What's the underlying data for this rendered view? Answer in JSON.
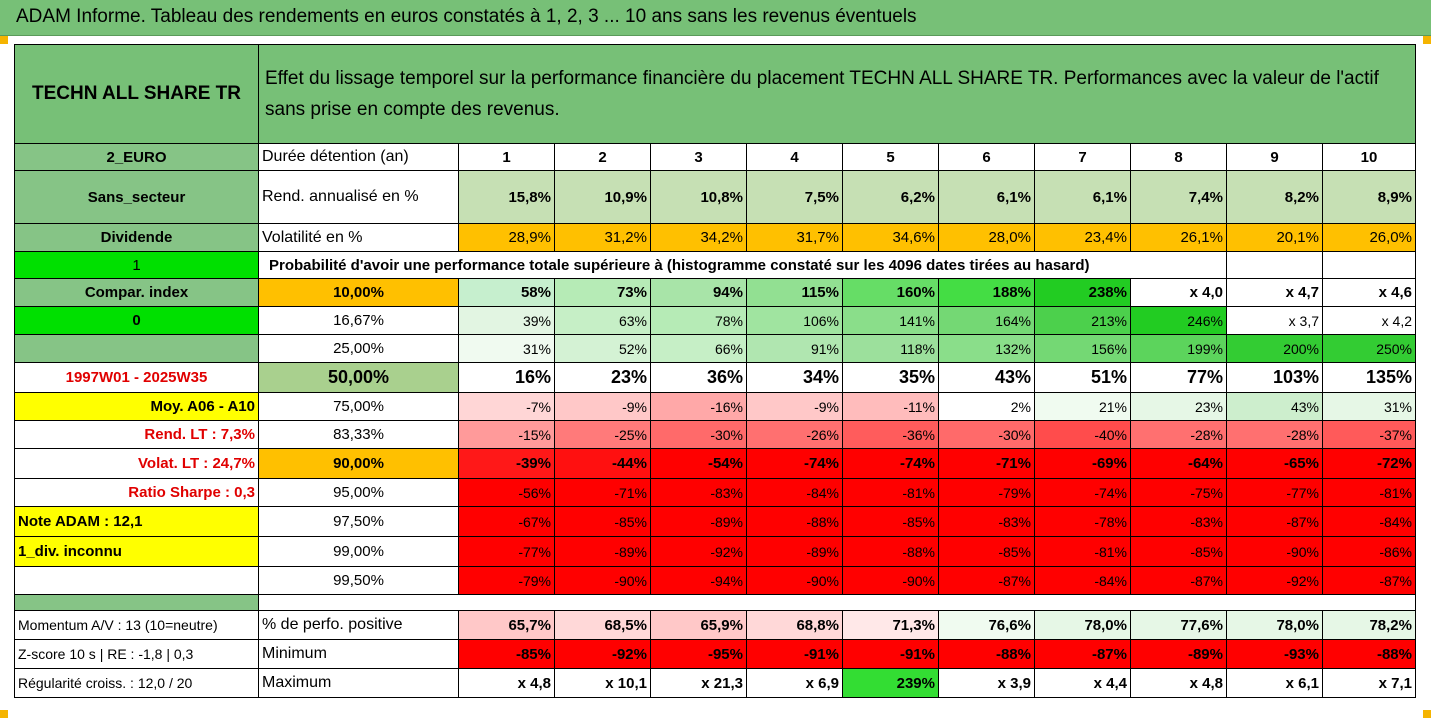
{
  "banner": {
    "title": "ADAM Informe. Tableau des rendements en euros constatés à 1, 2, 3 ... 10 ans sans les revenus éventuels"
  },
  "header": {
    "fund_name": "TECHN ALL SHARE TR",
    "description": "Effet du lissage temporel sur la performance financière du placement TECHN ALL SHARE TR. Performances avec la valeur de l'actif sans prise en compte des revenus."
  },
  "rows": {
    "duration": {
      "side": "2_EURO",
      "label": "Durée détention (an)",
      "values": [
        "1",
        "2",
        "3",
        "4",
        "5",
        "6",
        "7",
        "8",
        "9",
        "10"
      ]
    },
    "return": {
      "side": "Sans_secteur",
      "label": "Rend. annualisé en %",
      "values": [
        "15,8%",
        "10,9%",
        "10,8%",
        "7,5%",
        "6,2%",
        "6,1%",
        "6,1%",
        "7,4%",
        "8,2%",
        "8,9%"
      ]
    },
    "volatility": {
      "side": "Dividende",
      "label": "Volatilité en %",
      "values": [
        "28,9%",
        "31,2%",
        "34,2%",
        "31,7%",
        "34,6%",
        "28,0%",
        "23,4%",
        "26,1%",
        "20,1%",
        "26,0%"
      ]
    },
    "probability": {
      "side": "1",
      "text": "Probabilité d'avoir une performance totale supérieure à (histogramme constaté sur les 4096 dates tirées au hasard)"
    }
  },
  "percentile_sides": [
    "Compar. index",
    "0",
    "",
    "1997W01 - 2025W35",
    "Moy. A06 - A10",
    "Rend. LT :   7,3%",
    "Volat. LT :   24,7%",
    "Ratio Sharpe :    0,3",
    "Note ADAM : 12,1",
    "1_div. inconnu",
    ""
  ],
  "percentiles": [
    {
      "level": "10,00%",
      "values": [
        "58%",
        "73%",
        "94%",
        "115%",
        "160%",
        "188%",
        "238%",
        "x 4,0",
        "x 4,7",
        "x 4,6"
      ]
    },
    {
      "level": "16,67%",
      "values": [
        "39%",
        "63%",
        "78%",
        "106%",
        "141%",
        "164%",
        "213%",
        "246%",
        "x 3,7",
        "x 4,2"
      ]
    },
    {
      "level": "25,00%",
      "values": [
        "31%",
        "52%",
        "66%",
        "91%",
        "118%",
        "132%",
        "156%",
        "199%",
        "200%",
        "250%"
      ]
    },
    {
      "level": "50,00%",
      "values": [
        "16%",
        "23%",
        "36%",
        "34%",
        "35%",
        "43%",
        "51%",
        "77%",
        "103%",
        "135%"
      ]
    },
    {
      "level": "75,00%",
      "values": [
        "-7%",
        "-9%",
        "-16%",
        "-9%",
        "-11%",
        "2%",
        "21%",
        "23%",
        "43%",
        "31%"
      ]
    },
    {
      "level": "83,33%",
      "values": [
        "-15%",
        "-25%",
        "-30%",
        "-26%",
        "-36%",
        "-30%",
        "-40%",
        "-28%",
        "-28%",
        "-37%"
      ]
    },
    {
      "level": "90,00%",
      "values": [
        "-39%",
        "-44%",
        "-54%",
        "-74%",
        "-74%",
        "-71%",
        "-69%",
        "-64%",
        "-65%",
        "-72%"
      ]
    },
    {
      "level": "95,00%",
      "values": [
        "-56%",
        "-71%",
        "-83%",
        "-84%",
        "-81%",
        "-79%",
        "-74%",
        "-75%",
        "-77%",
        "-81%"
      ]
    },
    {
      "level": "97,50%",
      "values": [
        "-67%",
        "-85%",
        "-89%",
        "-88%",
        "-85%",
        "-83%",
        "-78%",
        "-83%",
        "-87%",
        "-84%"
      ]
    },
    {
      "level": "99,00%",
      "values": [
        "-77%",
        "-89%",
        "-92%",
        "-89%",
        "-88%",
        "-85%",
        "-81%",
        "-85%",
        "-90%",
        "-86%"
      ]
    },
    {
      "level": "99,50%",
      "values": [
        "-79%",
        "-90%",
        "-94%",
        "-90%",
        "-90%",
        "-87%",
        "-84%",
        "-87%",
        "-92%",
        "-87%"
      ]
    }
  ],
  "bottom": [
    {
      "side": "Momentum A/V : 13 (10=neutre)",
      "label": "% de perfo. positive",
      "values": [
        "65,7%",
        "68,5%",
        "65,9%",
        "68,8%",
        "71,3%",
        "76,6%",
        "78,0%",
        "77,6%",
        "78,0%",
        "78,2%"
      ]
    },
    {
      "side": "Z-score 10 s  |  RE : -1,8  |  0,3",
      "label": "Minimum",
      "values": [
        "-85%",
        "-92%",
        "-95%",
        "-91%",
        "-91%",
        "-88%",
        "-87%",
        "-89%",
        "-93%",
        "-88%"
      ]
    },
    {
      "side": "Régularité croiss. : 12,0 / 20",
      "label": "Maximum",
      "values": [
        "x 4,8",
        "x 10,1",
        "x 21,3",
        "x 6,9",
        "239%",
        "x 3,9",
        "x 4,4",
        "x 4,8",
        "x 6,1",
        "x 7,1"
      ]
    }
  ],
  "colors": {
    "header_green": "#77c077",
    "left_green": "#86c486",
    "bright_green": "#00e000",
    "yellow": "#ffff00",
    "orange": "#ffc000",
    "red_text": "#e00000",
    "red": "#ff0000"
  }
}
